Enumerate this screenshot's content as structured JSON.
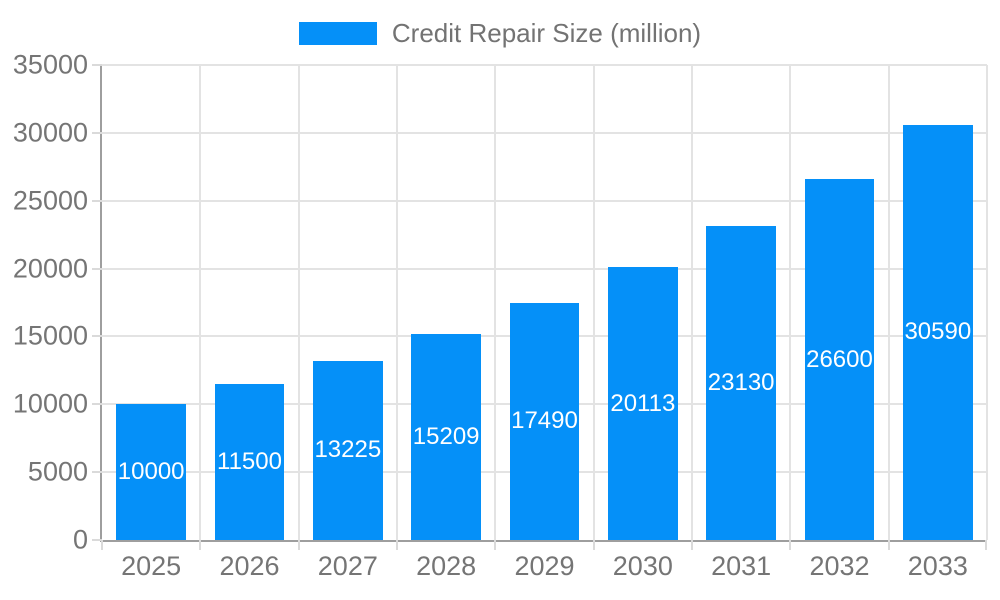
{
  "chart_data": {
    "type": "bar",
    "title": "Credit Repair Size (million)",
    "legend": {
      "label": "Credit Repair Size (million)",
      "position": "top-center"
    },
    "categories": [
      "2025",
      "2026",
      "2027",
      "2028",
      "2029",
      "2030",
      "2031",
      "2032",
      "2033"
    ],
    "series": [
      {
        "name": "Credit Repair Size (million)",
        "values": [
          10000,
          11500,
          13225,
          15209,
          17490,
          20113,
          23130,
          26600,
          30590
        ]
      }
    ],
    "value_labels": [
      "10000",
      "11500",
      "13225",
      "15209",
      "17490",
      "20113",
      "23130",
      "26600",
      "30590"
    ],
    "xlabel": "",
    "ylabel": "",
    "ylim": [
      0,
      35000
    ],
    "yticks": [
      0,
      5000,
      10000,
      15000,
      20000,
      25000,
      30000,
      35000
    ],
    "ytick_labels": [
      "0",
      "5000",
      "10000",
      "15000",
      "20000",
      "25000",
      "30000",
      "35000"
    ],
    "grid": true,
    "colors": {
      "bar": "#0590f8",
      "bar_label_text": "#ffffff",
      "axis": "#9e9e9e",
      "gridline": "#e3e3e3",
      "tick": "#dadada",
      "tick_text": "#757575",
      "legend_text": "#737373",
      "background": "#ffffff"
    }
  }
}
